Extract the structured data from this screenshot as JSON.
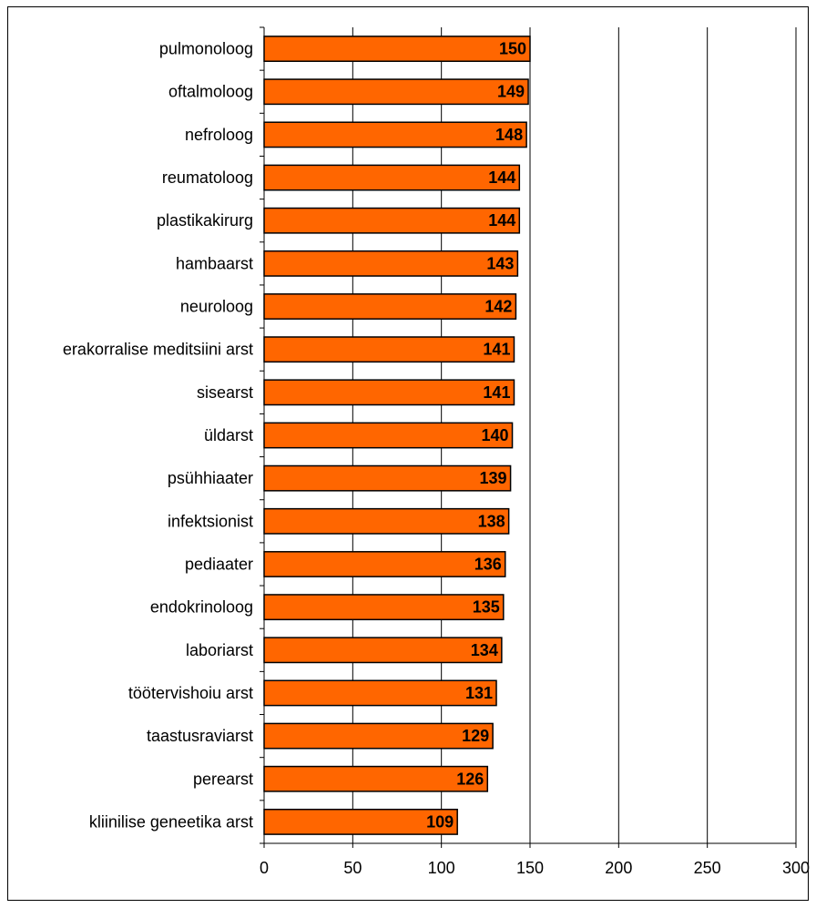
{
  "chart_data": {
    "type": "bar",
    "orientation": "horizontal",
    "categories": [
      "pulmonoloog",
      "oftalmoloog",
      "nefroloog",
      "reumatoloog",
      "plastikakirurg",
      "hambaarst",
      "neuroloog",
      "erakorralise meditsiini arst",
      "sisearst",
      "üldarst",
      "psühhiaater",
      "infektsionist",
      "pediaater",
      "endokrinoloog",
      "laboriarst",
      "töötervishoiu arst",
      "taastusraviarst",
      "perearst",
      "kliinilise geneetika arst"
    ],
    "values": [
      150,
      149,
      148,
      144,
      144,
      143,
      142,
      141,
      141,
      140,
      139,
      138,
      136,
      135,
      134,
      131,
      129,
      126,
      109
    ],
    "data_labels": [
      "150",
      "149",
      "148",
      "144",
      "144",
      "143",
      "142",
      "141",
      "141",
      "140",
      "139",
      "138",
      "136",
      "135",
      "134",
      "131",
      "129",
      "126",
      "109"
    ],
    "xlim": [
      0,
      300
    ],
    "x_ticks": [
      0,
      50,
      100,
      150,
      200,
      250,
      300
    ],
    "x_tick_labels": [
      "0",
      "50",
      "100",
      "150",
      "200",
      "250",
      "300"
    ],
    "title": "",
    "xlabel": "",
    "ylabel": "",
    "grid": "vertical",
    "legend": "none",
    "colors": {
      "bar_fill": "#FF6600",
      "bar_stroke": "#000000",
      "grid": "#000000"
    }
  }
}
